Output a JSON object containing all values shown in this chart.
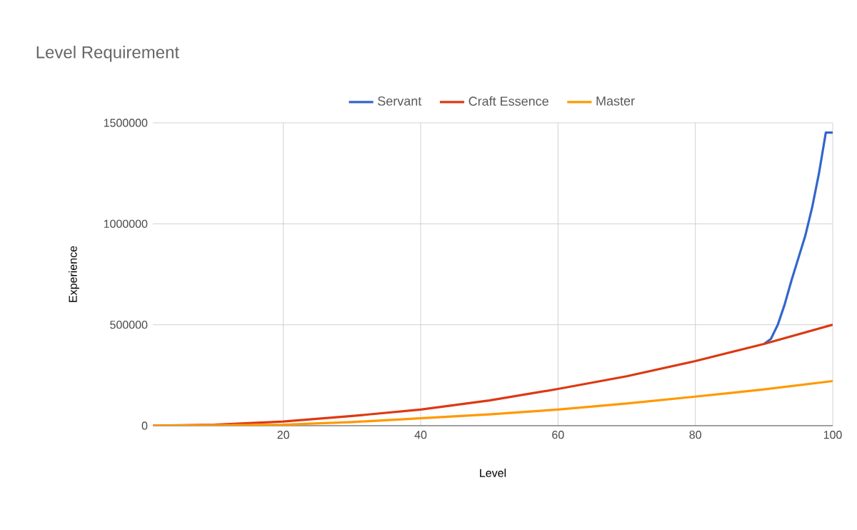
{
  "chart_data": {
    "type": "line",
    "title": "Level Requirement",
    "xlabel": "Level",
    "ylabel": "Experience",
    "xlim": [
      1,
      100
    ],
    "xticks": [
      20,
      40,
      60,
      80,
      100
    ],
    "ylim": [
      0,
      1500000
    ],
    "yticks": [
      0,
      500000,
      1000000,
      1500000
    ],
    "grid": true,
    "legend": "top",
    "series": [
      {
        "name": "Servant",
        "color": "#3366cc",
        "x": [
          90,
          91,
          92,
          93,
          94,
          95,
          96,
          97,
          98,
          99,
          100
        ],
        "values": [
          405000,
          430000,
          500000,
          600000,
          720000,
          830000,
          940000,
          1080000,
          1250000,
          1452000,
          1452000
        ]
      },
      {
        "name": "Craft Essence",
        "color": "#dc3912",
        "x": [
          1,
          10,
          20,
          30,
          40,
          50,
          60,
          70,
          80,
          90,
          100
        ],
        "values": [
          0,
          5000,
          21000,
          48000,
          80000,
          125000,
          182000,
          245000,
          320000,
          405000,
          500000
        ]
      },
      {
        "name": "Master",
        "color": "#ff9900",
        "x": [
          1,
          10,
          20,
          30,
          40,
          50,
          60,
          70,
          80,
          90,
          100
        ],
        "values": [
          0,
          2000,
          5000,
          18000,
          37000,
          56000,
          80000,
          110000,
          144000,
          180000,
          221000
        ]
      }
    ]
  }
}
